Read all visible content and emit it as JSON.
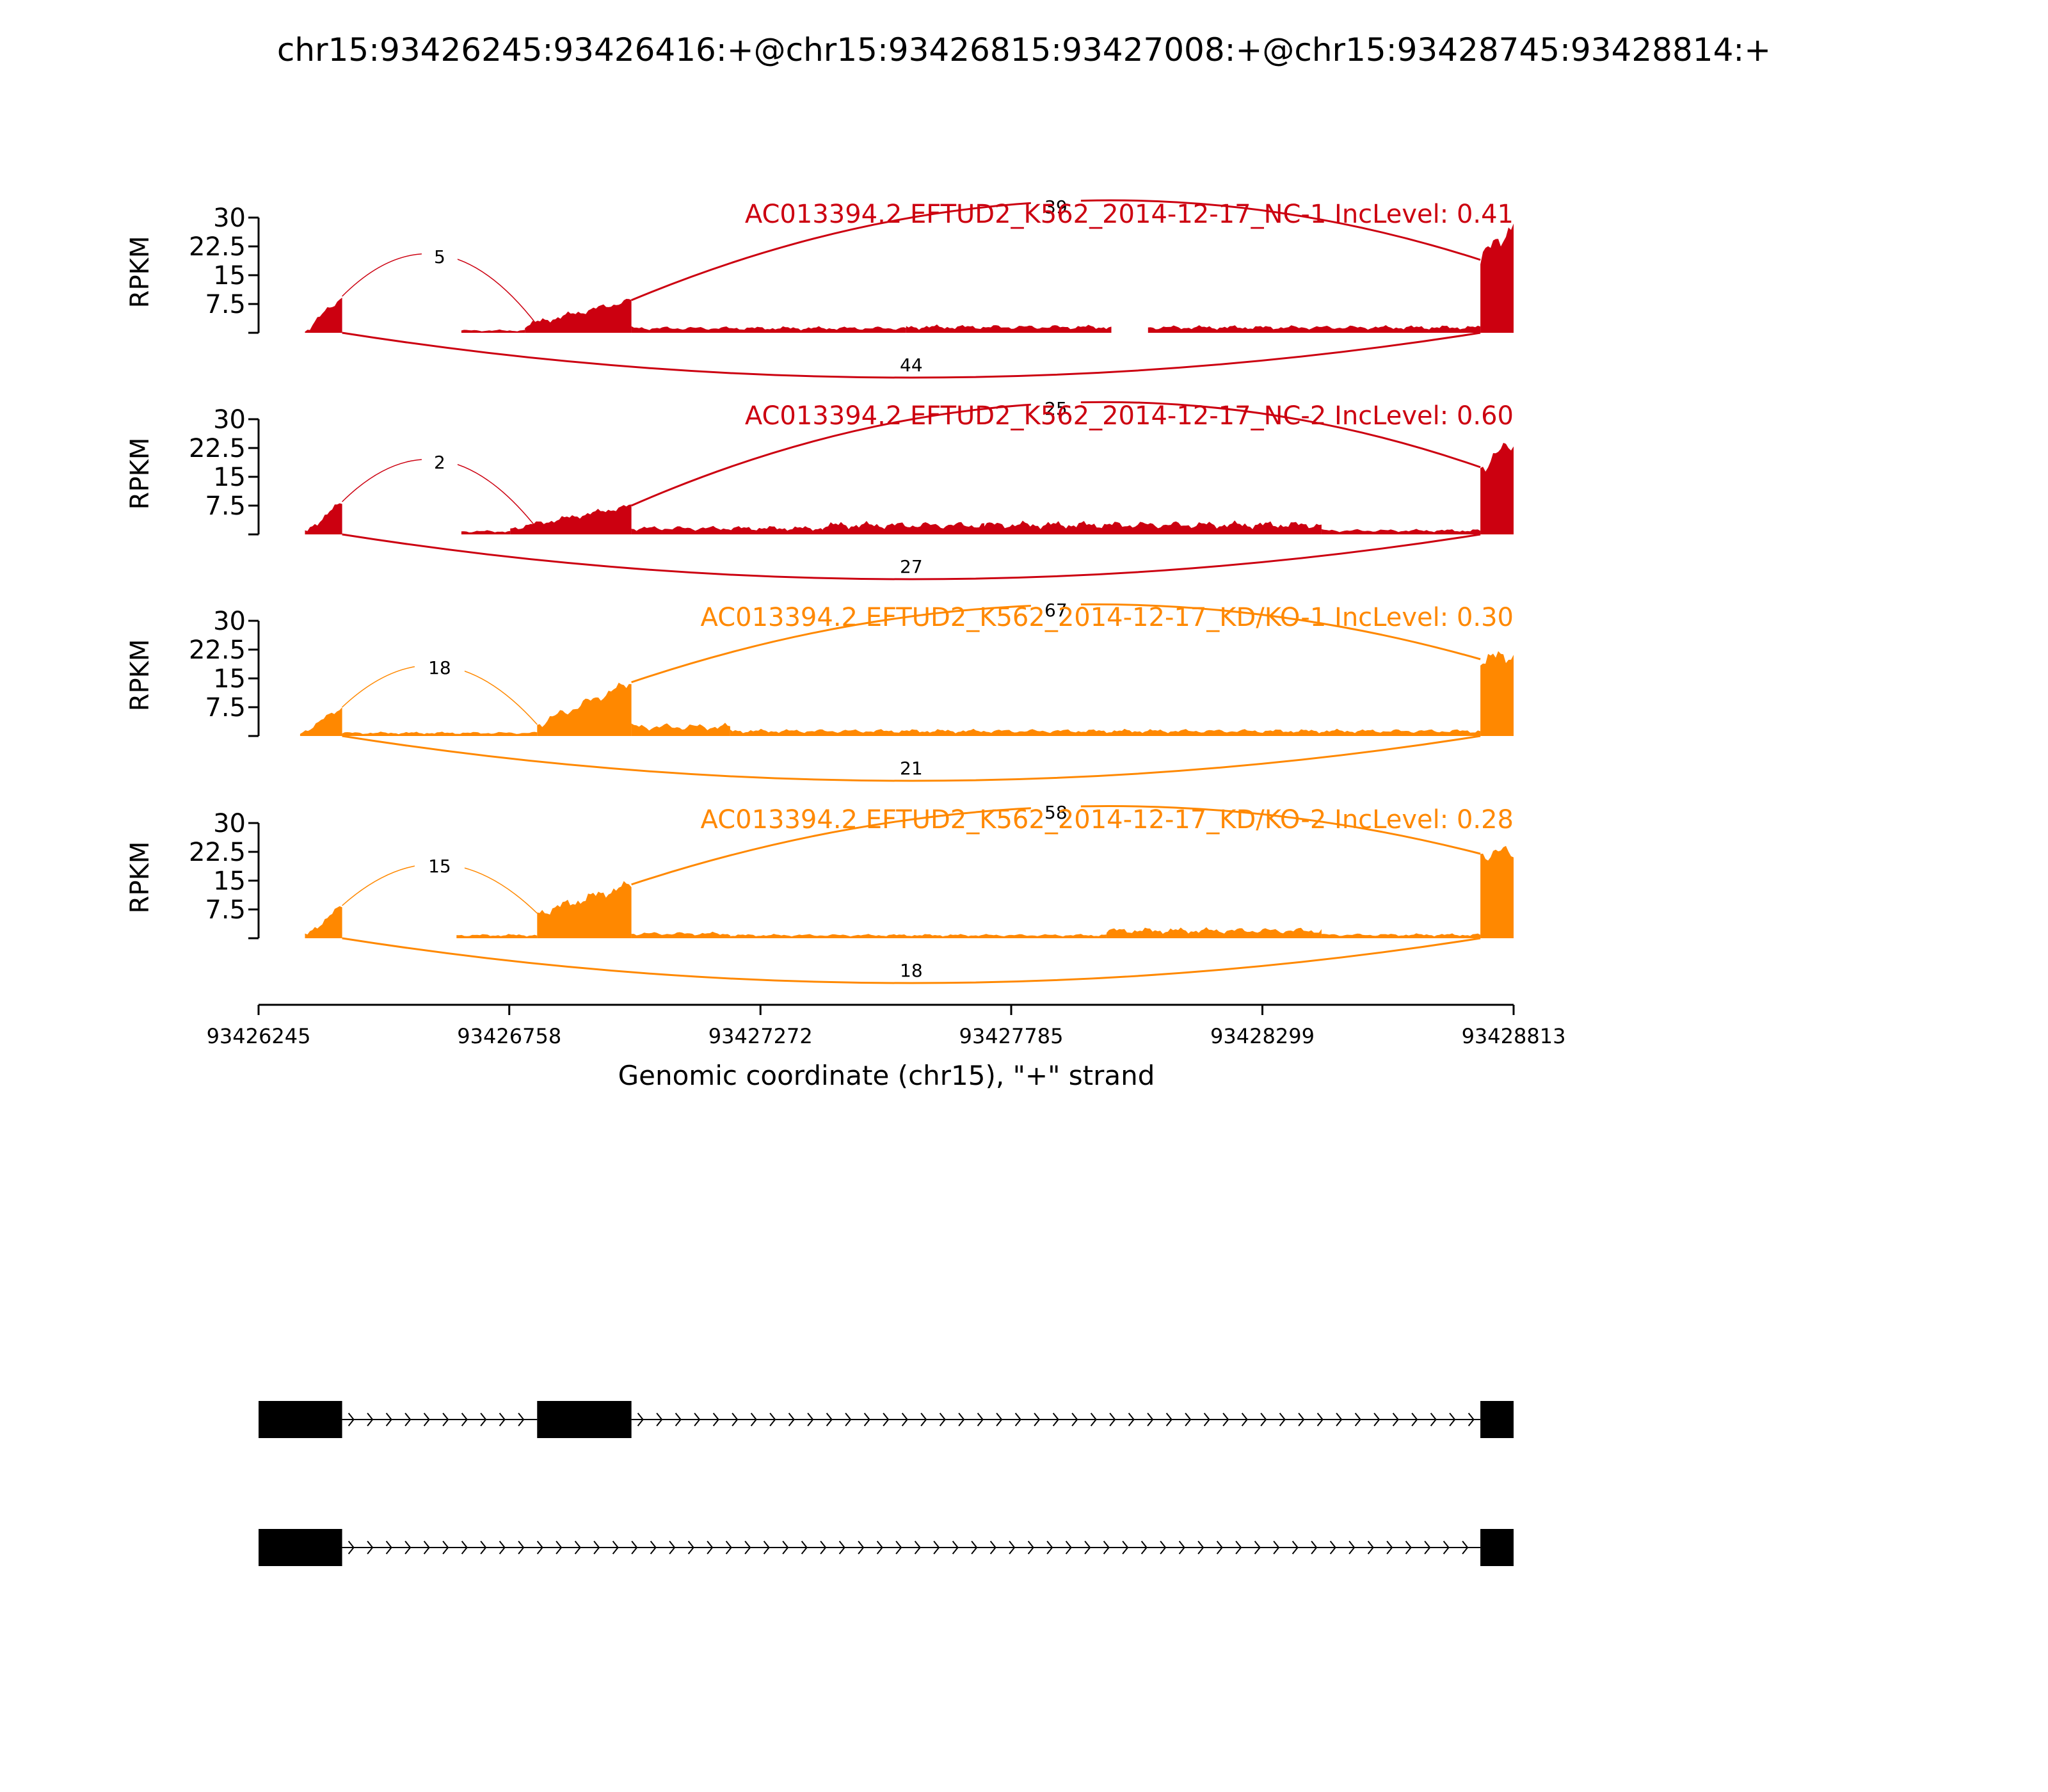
{
  "title": "chr15:93426245:93426416:+@chr15:93426815:93427008:+@chr15:93428745:93428814:+",
  "colors": {
    "nc": "#cc0010",
    "kd": "#ff8800",
    "axis": "#000000",
    "structure": "#000000"
  },
  "chart_data": {
    "type": "area",
    "subtype": "sashimi",
    "title": "chr15:93426245:93426416:+@chr15:93426815:93427008:+@chr15:93428745:93428814:+",
    "xlabel": "Genomic coordinate (chr15), \"+\" strand",
    "xlim": [
      93426245,
      93428813
    ],
    "x_ticks": [
      "93426245",
      "93426758",
      "93427272",
      "93427785",
      "93428299",
      "93428813"
    ],
    "ylabel": "RPKM",
    "ylim": [
      0,
      30
    ],
    "y_ticks": [
      "7.5",
      "15",
      "22.5",
      "30"
    ],
    "exons": [
      {
        "start": 93426245,
        "end": 93426416
      },
      {
        "start": 93426815,
        "end": 93427008
      },
      {
        "start": 93428745,
        "end": 93428814
      }
    ],
    "tracks": [
      {
        "label": "AC013394.2 EFTUD2_K562_2014-12-17_NC-1 IncLevel: 0.41",
        "color": "#cc0010",
        "exon_levels": [
          {
            "start": 93426340,
            "end": 93426416,
            "from": 0.5,
            "to": 9.5
          },
          {
            "start": 93426790,
            "end": 93427008,
            "from": 2.0,
            "to": 8.5
          },
          {
            "start": 93428745,
            "end": 93428813,
            "from": 19.0,
            "to": 28.5
          }
        ],
        "intron_levels": [
          {
            "start": 93426660,
            "end": 93426790,
            "level": 0.6
          },
          {
            "start": 93427008,
            "end": 93427570,
            "level": 1.2
          },
          {
            "start": 93427570,
            "end": 93427990,
            "level": 1.5
          },
          {
            "start": 93428065,
            "end": 93428745,
            "level": 1.4
          }
        ],
        "junctions": [
          {
            "start": 93426416,
            "end": 93426815,
            "count": "5",
            "side": "above"
          },
          {
            "start": 93427008,
            "end": 93428745,
            "count": "39",
            "side": "above"
          },
          {
            "start": 93426416,
            "end": 93428745,
            "count": "44",
            "side": "below"
          }
        ]
      },
      {
        "label": "AC013394.2 EFTUD2_K562_2014-12-17_NC-2 IncLevel: 0.60",
        "color": "#cc0010",
        "exon_levels": [
          {
            "start": 93426340,
            "end": 93426416,
            "from": 0.5,
            "to": 8.5
          },
          {
            "start": 93426760,
            "end": 93427008,
            "from": 1.5,
            "to": 7.5
          },
          {
            "start": 93428745,
            "end": 93428813,
            "from": 17.5,
            "to": 24.0
          }
        ],
        "intron_levels": [
          {
            "start": 93426660,
            "end": 93426760,
            "level": 0.8
          },
          {
            "start": 93427008,
            "end": 93427400,
            "level": 1.6
          },
          {
            "start": 93427400,
            "end": 93427730,
            "level": 2.4
          },
          {
            "start": 93427730,
            "end": 93428420,
            "level": 2.5
          },
          {
            "start": 93428420,
            "end": 93428745,
            "level": 1.0
          }
        ],
        "junctions": [
          {
            "start": 93426416,
            "end": 93426815,
            "count": "2",
            "side": "above"
          },
          {
            "start": 93427008,
            "end": 93428745,
            "count": "25",
            "side": "above"
          },
          {
            "start": 93426416,
            "end": 93428745,
            "count": "27",
            "side": "below"
          }
        ]
      },
      {
        "label": "AC013394.2 EFTUD2_K562_2014-12-17_KD/KO-1 IncLevel: 0.30",
        "color": "#ff8800",
        "exon_levels": [
          {
            "start": 93426330,
            "end": 93426416,
            "from": 0.5,
            "to": 7.5
          },
          {
            "start": 93426815,
            "end": 93427008,
            "from": 3.0,
            "to": 14.0
          },
          {
            "start": 93428745,
            "end": 93428813,
            "from": 20.0,
            "to": 21.0
          }
        ],
        "intron_levels": [
          {
            "start": 93426416,
            "end": 93426815,
            "level": 0.8
          },
          {
            "start": 93427008,
            "end": 93427210,
            "level": 2.4
          },
          {
            "start": 93427210,
            "end": 93428745,
            "level": 1.3
          }
        ],
        "junctions": [
          {
            "start": 93426416,
            "end": 93426815,
            "count": "18",
            "side": "above"
          },
          {
            "start": 93427008,
            "end": 93428745,
            "count": "67",
            "side": "above"
          },
          {
            "start": 93426416,
            "end": 93428745,
            "count": "21",
            "side": "below"
          }
        ]
      },
      {
        "label": "AC013394.2 EFTUD2_K562_2014-12-17_KD/KO-2 IncLevel: 0.28",
        "color": "#ff8800",
        "exon_levels": [
          {
            "start": 93426340,
            "end": 93426416,
            "from": 0.5,
            "to": 8.5
          },
          {
            "start": 93426815,
            "end": 93427008,
            "from": 6.5,
            "to": 14.0
          },
          {
            "start": 93428745,
            "end": 93428813,
            "from": 22.0,
            "to": 22.5
          }
        ],
        "intron_levels": [
          {
            "start": 93426650,
            "end": 93426815,
            "level": 0.8
          },
          {
            "start": 93427008,
            "end": 93427210,
            "level": 1.2
          },
          {
            "start": 93427210,
            "end": 93427980,
            "level": 0.8
          },
          {
            "start": 93427980,
            "end": 93428420,
            "level": 2.0
          },
          {
            "start": 93428420,
            "end": 93428745,
            "level": 0.9
          }
        ],
        "junctions": [
          {
            "start": 93426416,
            "end": 93426815,
            "count": "15",
            "side": "above"
          },
          {
            "start": 93427008,
            "end": 93428745,
            "count": "58",
            "side": "above"
          },
          {
            "start": 93426416,
            "end": 93428745,
            "count": "18",
            "side": "below"
          }
        ]
      }
    ],
    "isoforms": [
      {
        "exons": [
          0,
          1,
          2
        ]
      },
      {
        "exons": [
          0,
          2
        ]
      }
    ]
  }
}
